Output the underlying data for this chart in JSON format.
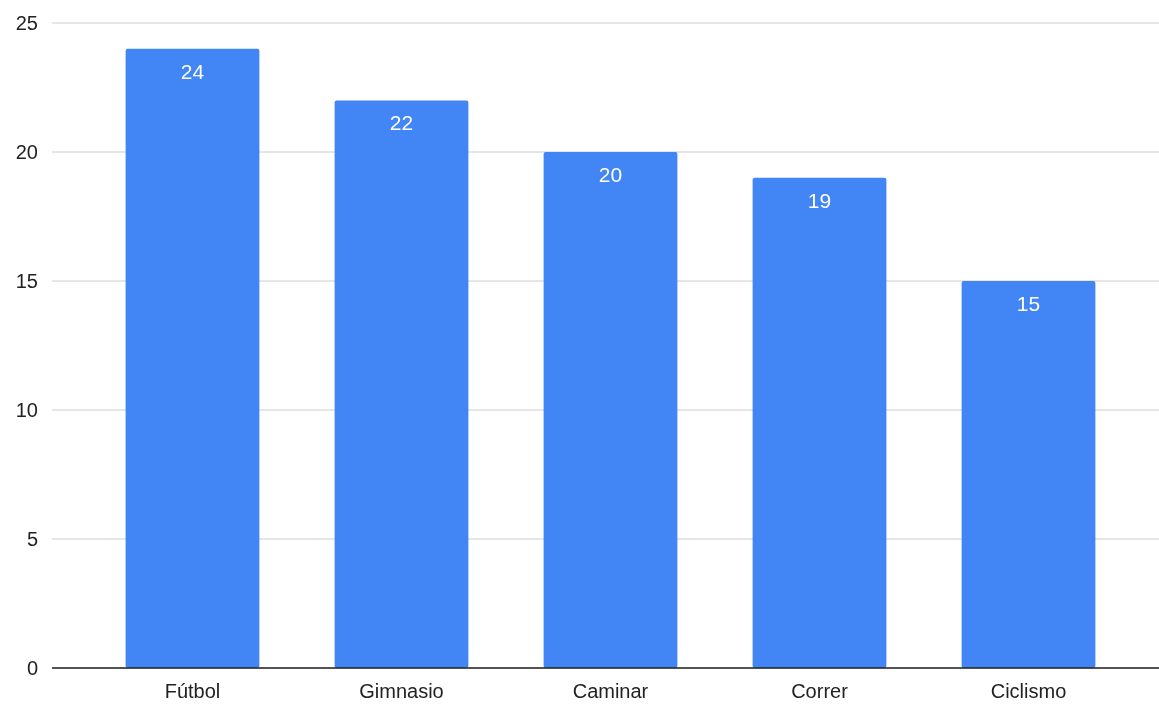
{
  "chart_data": {
    "type": "bar",
    "categories": [
      "Fútbol",
      "Gimnasio",
      "Caminar",
      "Correr",
      "Ciclismo"
    ],
    "values": [
      24,
      22,
      20,
      19,
      15
    ],
    "color": "#4285f4",
    "ylim": [
      0,
      25
    ],
    "yticks": [
      0,
      5,
      10,
      15,
      20,
      25
    ],
    "grid": "y",
    "data_labels": true
  }
}
